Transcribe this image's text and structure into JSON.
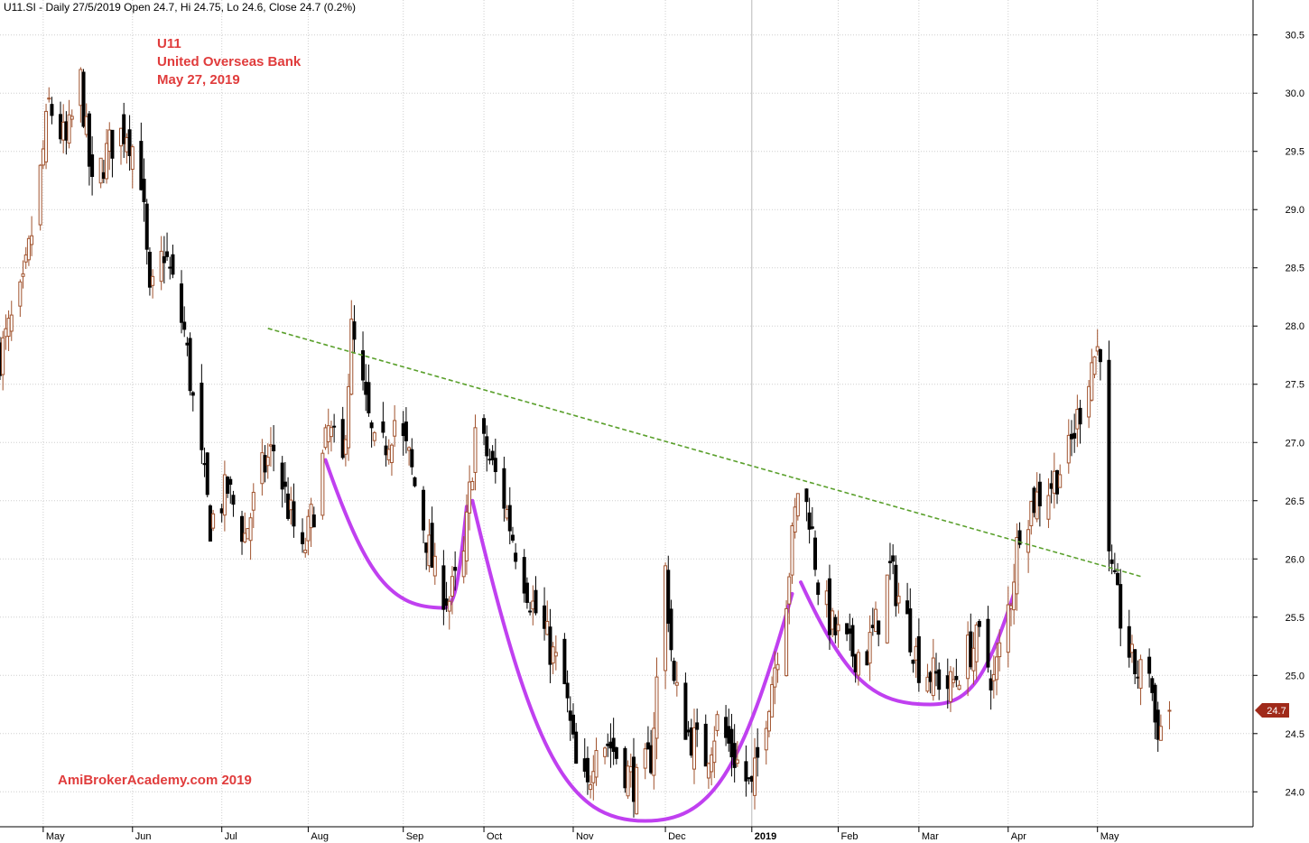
{
  "header": {
    "text": "U11.SI - Daily 27/5/2019 Open 24.7, Hi 24.75, Lo 24.6, Close 24.7 (0.2%)"
  },
  "annotation": {
    "symbol": "U11",
    "company": "United Overseas Bank",
    "date": "May 27, 2019",
    "watermark": "AmiBrokerAcademy.com  2019"
  },
  "colors": {
    "up_candle": "#a0522d",
    "down_candle": "#000000",
    "annotation_text": "#e03c3c",
    "trendline": "#5aa02c",
    "pattern_curve": "#c040f0",
    "last_price_tag": "#a02a1a",
    "grid": "#cfcfcf"
  },
  "chart_data": {
    "type": "candlestick",
    "x_axis": {
      "type": "date",
      "range": [
        "2018-04-16",
        "2019-06-25"
      ],
      "tick_labels": [
        {
          "label": "May",
          "date": "2018-05-01"
        },
        {
          "label": "Jun",
          "date": "2018-06-01"
        },
        {
          "label": "Jul",
          "date": "2018-07-02"
        },
        {
          "label": "Aug",
          "date": "2018-08-01"
        },
        {
          "label": "Sep",
          "date": "2018-09-03"
        },
        {
          "label": "Oct",
          "date": "2018-10-01"
        },
        {
          "label": "Nov",
          "date": "2018-11-01"
        },
        {
          "label": "Dec",
          "date": "2018-12-03"
        },
        {
          "label": "2019",
          "date": "2019-01-02",
          "bold": true
        },
        {
          "label": "Feb",
          "date": "2019-02-01"
        },
        {
          "label": "Mar",
          "date": "2019-03-01"
        },
        {
          "label": "Apr",
          "date": "2019-04-01"
        },
        {
          "label": "May",
          "date": "2019-05-02"
        }
      ]
    },
    "y_axis": {
      "min": 23.7,
      "max": 30.8,
      "ticks": [
        "24.0",
        "24.5",
        "25.0",
        "25.5",
        "26.0",
        "26.5",
        "27.0",
        "27.5",
        "28.0",
        "28.5",
        "29.0",
        "29.5",
        "30.0",
        "30.5"
      ]
    },
    "grid": true,
    "last_price_label": "24.7",
    "last_price": 24.7,
    "price_path": [
      [
        "2018-04-16",
        27.75
      ],
      [
        "2018-04-24",
        28.3
      ],
      [
        "2018-04-30",
        29.3
      ],
      [
        "2018-05-03",
        29.9
      ],
      [
        "2018-05-09",
        29.55
      ],
      [
        "2018-05-14",
        30.1
      ],
      [
        "2018-05-18",
        29.15
      ],
      [
        "2018-05-24",
        29.55
      ],
      [
        "2018-05-30",
        29.7
      ],
      [
        "2018-06-04",
        29.3
      ],
      [
        "2018-06-07",
        28.2
      ],
      [
        "2018-06-12",
        28.65
      ],
      [
        "2018-06-19",
        27.95
      ],
      [
        "2018-06-22",
        27.35
      ],
      [
        "2018-06-28",
        26.3
      ],
      [
        "2018-07-04",
        26.6
      ],
      [
        "2018-07-10",
        26.2
      ],
      [
        "2018-07-16",
        26.75
      ],
      [
        "2018-07-20",
        26.95
      ],
      [
        "2018-07-25",
        26.45
      ],
      [
        "2018-07-30",
        26.0
      ],
      [
        "2018-08-03",
        26.45
      ],
      [
        "2018-08-08",
        27.1
      ],
      [
        "2018-08-13",
        26.8
      ],
      [
        "2018-08-16",
        27.95
      ],
      [
        "2018-08-21",
        27.3
      ],
      [
        "2018-08-25",
        26.8
      ],
      [
        "2018-08-31",
        27.2
      ],
      [
        "2018-09-05",
        26.85
      ],
      [
        "2018-09-10",
        26.3
      ],
      [
        "2018-09-14",
        25.85
      ],
      [
        "2018-09-19",
        25.65
      ],
      [
        "2018-09-24",
        26.0
      ],
      [
        "2018-09-28",
        27.1
      ],
      [
        "2018-10-03",
        26.85
      ],
      [
        "2018-10-08",
        26.5
      ],
      [
        "2018-10-12",
        26.1
      ],
      [
        "2018-10-18",
        25.6
      ],
      [
        "2018-10-23",
        25.3
      ],
      [
        "2018-10-29",
        24.9
      ],
      [
        "2018-11-02",
        24.2
      ],
      [
        "2018-11-06",
        24.0
      ],
      [
        "2018-11-09",
        24.5
      ],
      [
        "2018-11-14",
        24.4
      ],
      [
        "2018-11-19",
        24.2
      ],
      [
        "2018-11-23",
        24.05
      ],
      [
        "2018-11-28",
        24.3
      ],
      [
        "2018-12-03",
        25.9
      ],
      [
        "2018-12-06",
        24.9
      ],
      [
        "2018-12-11",
        24.5
      ],
      [
        "2018-12-17",
        24.3
      ],
      [
        "2018-12-21",
        24.6
      ],
      [
        "2018-12-27",
        24.3
      ],
      [
        "2019-01-02",
        24.0
      ],
      [
        "2019-01-07",
        24.7
      ],
      [
        "2019-01-10",
        25.1
      ],
      [
        "2019-01-14",
        25.7
      ],
      [
        "2019-01-18",
        26.6
      ],
      [
        "2019-01-22",
        26.4
      ],
      [
        "2019-01-25",
        25.8
      ],
      [
        "2019-01-30",
        25.4
      ],
      [
        "2019-02-05",
        25.2
      ],
      [
        "2019-02-11",
        25.2
      ],
      [
        "2019-02-15",
        25.5
      ],
      [
        "2019-02-19",
        25.9
      ],
      [
        "2019-02-25",
        25.45
      ],
      [
        "2019-03-01",
        25.1
      ],
      [
        "2019-03-06",
        25.0
      ],
      [
        "2019-03-12",
        24.9
      ],
      [
        "2019-03-18",
        25.2
      ],
      [
        "2019-03-22",
        25.3
      ],
      [
        "2019-03-27",
        24.95
      ],
      [
        "2019-04-02",
        25.7
      ],
      [
        "2019-04-05",
        26.3
      ],
      [
        "2019-04-10",
        26.5
      ],
      [
        "2019-04-16",
        26.65
      ],
      [
        "2019-04-22",
        26.9
      ],
      [
        "2019-04-25",
        27.2
      ],
      [
        "2019-04-30",
        27.7
      ],
      [
        "2019-05-03",
        27.85
      ],
      [
        "2019-05-06",
        25.95
      ],
      [
        "2019-05-10",
        25.5
      ],
      [
        "2019-05-14",
        25.1
      ],
      [
        "2019-05-17",
        25.0
      ],
      [
        "2019-05-20",
        25.1
      ],
      [
        "2019-05-22",
        24.6
      ],
      [
        "2019-05-24",
        24.55
      ],
      [
        "2019-05-27",
        24.7
      ]
    ],
    "annotations": {
      "trendline": {
        "style": "dashed",
        "from": [
          "2018-07-18",
          27.98
        ],
        "to": [
          "2019-05-17",
          25.85
        ]
      },
      "curves": [
        {
          "start": [
            "2018-08-07",
            26.85
          ],
          "bottom": [
            "2018-09-17",
            25.58
          ],
          "end": [
            "2018-09-25",
            26.45
          ]
        },
        {
          "start": [
            "2018-09-27",
            26.5
          ],
          "bottom": [
            "2018-11-26",
            23.75
          ],
          "end": [
            "2019-01-16",
            25.7
          ]
        },
        {
          "start": [
            "2019-01-19",
            25.8
          ],
          "bottom": [
            "2019-03-05",
            24.75
          ],
          "end": [
            "2019-04-04",
            25.78
          ]
        }
      ]
    }
  }
}
